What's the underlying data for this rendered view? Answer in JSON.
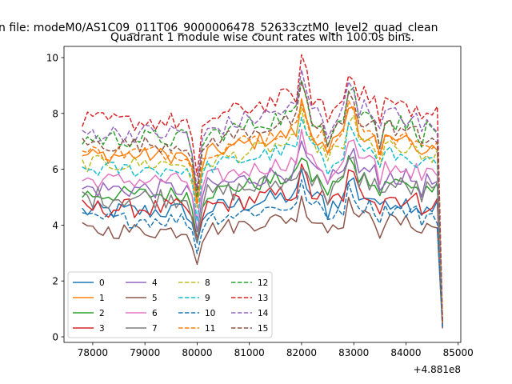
{
  "suptitle": "n file: modeM0/AS1C09_011T06_9000006478_52633cztM0_level2_quad_clean",
  "chart_data": {
    "type": "line",
    "title": "Quadrant 1 module wise count rates with 100.0s bins.",
    "xlabel": "",
    "ylabel": "",
    "x_offset_label": "+4.881e8",
    "x_range": [
      77800,
      84700
    ],
    "xlim": [
      77450,
      85050
    ],
    "ylim": [
      -0.2,
      10.4
    ],
    "x_ticks": [
      78000,
      79000,
      80000,
      81000,
      82000,
      83000,
      84000,
      85000
    ],
    "y_ticks": [
      0,
      2,
      4,
      6,
      8,
      10
    ],
    "grid": false,
    "legend_placement": "lower-left",
    "dips": [
      {
        "x": 79900,
        "depth": 0.09
      },
      {
        "x": 80000,
        "depth": 0.28
      },
      {
        "x": 80100,
        "depth": 0.06
      },
      {
        "x": 82500,
        "depth": 0.08
      },
      {
        "x": 83500,
        "depth": 0.1
      },
      {
        "x": 84300,
        "depth": 0.05
      }
    ],
    "series": [
      {
        "name": "0",
        "color": "#1f77b4",
        "dash": false,
        "base": 4.5,
        "end": 0.35,
        "amp": 0.35
      },
      {
        "name": "1",
        "color": "#ff7f0e",
        "dash": false,
        "base": 6.5,
        "end": 0.45,
        "amp": 0.3
      },
      {
        "name": "2",
        "color": "#2ca02c",
        "dash": false,
        "base": 5.1,
        "end": 0.35,
        "amp": 0.3
      },
      {
        "name": "3",
        "color": "#d62728",
        "dash": false,
        "base": 4.6,
        "end": 0.35,
        "amp": 0.35
      },
      {
        "name": "4",
        "color": "#9467bd",
        "dash": false,
        "base": 5.3,
        "end": 0.35,
        "amp": 0.35
      },
      {
        "name": "5",
        "color": "#8c564b",
        "dash": false,
        "base": 3.8,
        "end": 0.3,
        "amp": 0.3
      },
      {
        "name": "6",
        "color": "#e377c2",
        "dash": false,
        "base": 5.6,
        "end": 0.4,
        "amp": 0.3
      },
      {
        "name": "7",
        "color": "#7f7f7f",
        "dash": false,
        "base": 5.0,
        "end": 0.35,
        "amp": 0.4
      },
      {
        "name": "8",
        "color": "#bcbd22",
        "dash": true,
        "base": 6.2,
        "end": 0.4,
        "amp": 0.3
      },
      {
        "name": "9",
        "color": "#17becf",
        "dash": true,
        "base": 6.0,
        "end": 0.4,
        "amp": 0.3
      },
      {
        "name": "10",
        "color": "#1f77b4",
        "dash": true,
        "base": 4.2,
        "end": 0.3,
        "amp": 0.3
      },
      {
        "name": "11",
        "color": "#ff7f0e",
        "dash": true,
        "base": 6.6,
        "end": 0.45,
        "amp": 0.3
      },
      {
        "name": "12",
        "color": "#2ca02c",
        "dash": true,
        "base": 7.1,
        "end": 0.45,
        "amp": 0.35
      },
      {
        "name": "13",
        "color": "#d62728",
        "dash": true,
        "base": 7.7,
        "end": 0.5,
        "amp": 0.35
      },
      {
        "name": "14",
        "color": "#9467bd",
        "dash": true,
        "base": 7.3,
        "end": 0.45,
        "amp": 0.35
      },
      {
        "name": "15",
        "color": "#8c564b",
        "dash": true,
        "base": 6.9,
        "end": 0.45,
        "amp": 0.3
      }
    ]
  }
}
